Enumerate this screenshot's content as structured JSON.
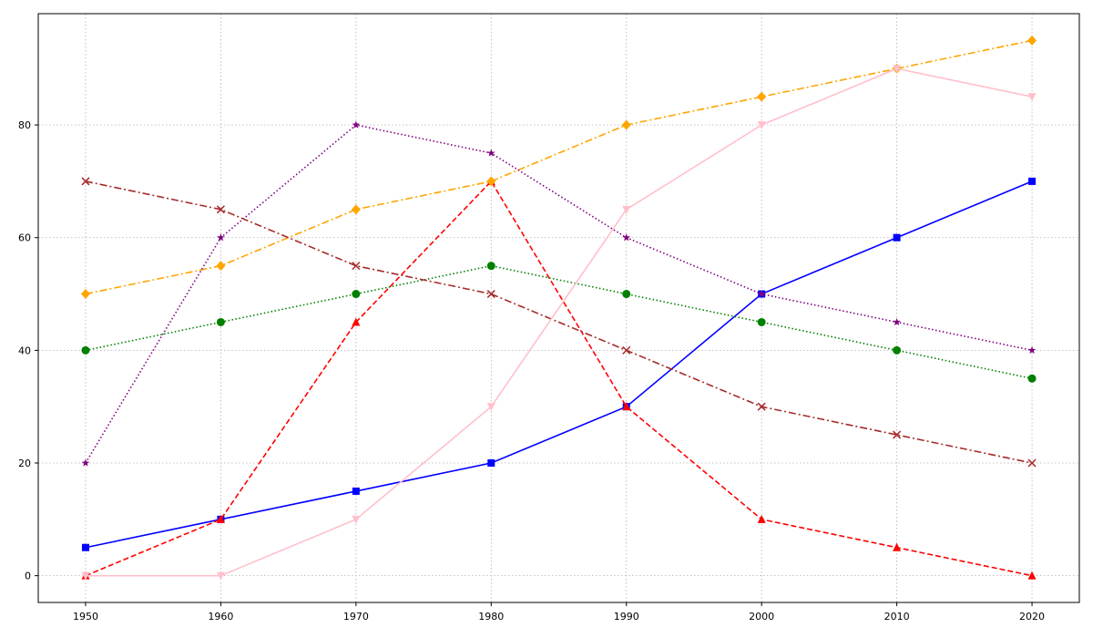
{
  "chart_data": {
    "type": "line",
    "title": "",
    "xlabel": "",
    "ylabel": "",
    "x": [
      1950,
      1960,
      1970,
      1980,
      1990,
      2000,
      2010,
      2020
    ],
    "xlim": [
      1946.5,
      2023.5
    ],
    "ylim": [
      -4.75,
      99.75
    ],
    "xticks": [
      1950,
      1960,
      1970,
      1980,
      1990,
      2000,
      2010,
      2020
    ],
    "yticks": [
      0,
      20,
      40,
      60,
      80
    ],
    "grid": true,
    "series": [
      {
        "color": "#0000ff",
        "linestyle": "solid",
        "marker": "square",
        "values": [
          5,
          10,
          15,
          20,
          30,
          50,
          60,
          70
        ]
      },
      {
        "color": "#ff0000",
        "linestyle": "dashed",
        "marker": "triangle-up",
        "values": [
          0,
          10,
          45,
          70,
          30,
          10,
          5,
          0
        ]
      },
      {
        "color": "#008000",
        "linestyle": "dotted",
        "marker": "circle",
        "values": [
          40,
          45,
          50,
          55,
          50,
          45,
          40,
          35
        ]
      },
      {
        "color": "#ffa500",
        "linestyle": "dashdot",
        "marker": "diamond",
        "values": [
          50,
          55,
          65,
          70,
          80,
          85,
          90,
          95
        ]
      },
      {
        "color": "#800080",
        "linestyle": "dotted",
        "marker": "star",
        "values": [
          20,
          60,
          80,
          75,
          60,
          50,
          45,
          40
        ]
      },
      {
        "color": "#a52a2a",
        "linestyle": "dashdot",
        "marker": "x",
        "values": [
          70,
          65,
          55,
          50,
          40,
          30,
          25,
          20
        ]
      },
      {
        "color": "#ffc0cb",
        "linestyle": "solid",
        "marker": "triangle-down",
        "values": [
          0,
          0,
          10,
          30,
          65,
          80,
          90,
          85
        ]
      }
    ]
  }
}
